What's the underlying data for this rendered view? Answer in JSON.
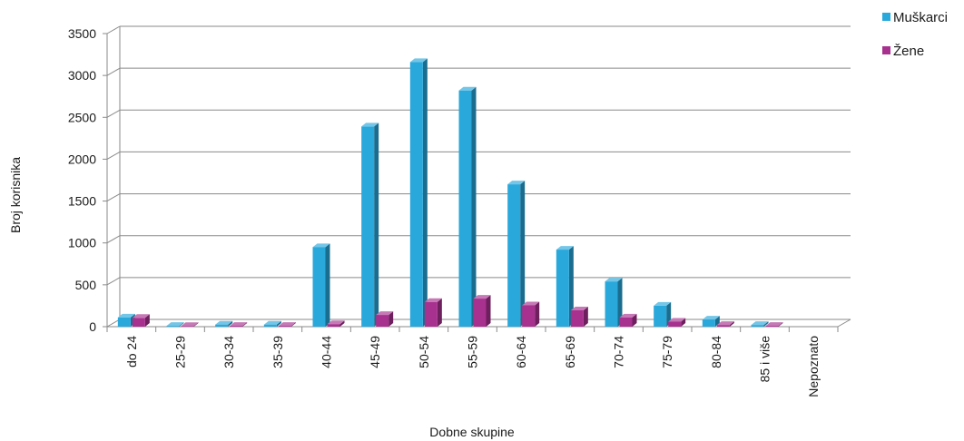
{
  "chart_data": {
    "type": "bar",
    "title": "",
    "xlabel": "Dobne skupine",
    "ylabel": "Broj korisnika",
    "ylim": [
      0,
      3500
    ],
    "yticks": [
      0,
      500,
      1000,
      1500,
      2000,
      2500,
      3000,
      3500
    ],
    "grid": true,
    "legend_position": "top-right",
    "categories": [
      "do 24",
      "25-29",
      "30-34",
      "35-39",
      "40-44",
      "45-49",
      "50-54",
      "55-59",
      "60-64",
      "65-69",
      "70-74",
      "75-79",
      "80-84",
      "85 i više",
      "Nepoznato"
    ],
    "series": [
      {
        "name": "Muškarci",
        "color": "#29a8dc",
        "values": [
          110,
          10,
          25,
          25,
          950,
          2390,
          3160,
          2820,
          1700,
          920,
          540,
          250,
          85,
          20,
          0
        ]
      },
      {
        "name": "Žene",
        "color": "#a8318f",
        "values": [
          105,
          8,
          10,
          10,
          30,
          140,
          295,
          335,
          255,
          195,
          110,
          60,
          20,
          10,
          0
        ]
      }
    ]
  }
}
